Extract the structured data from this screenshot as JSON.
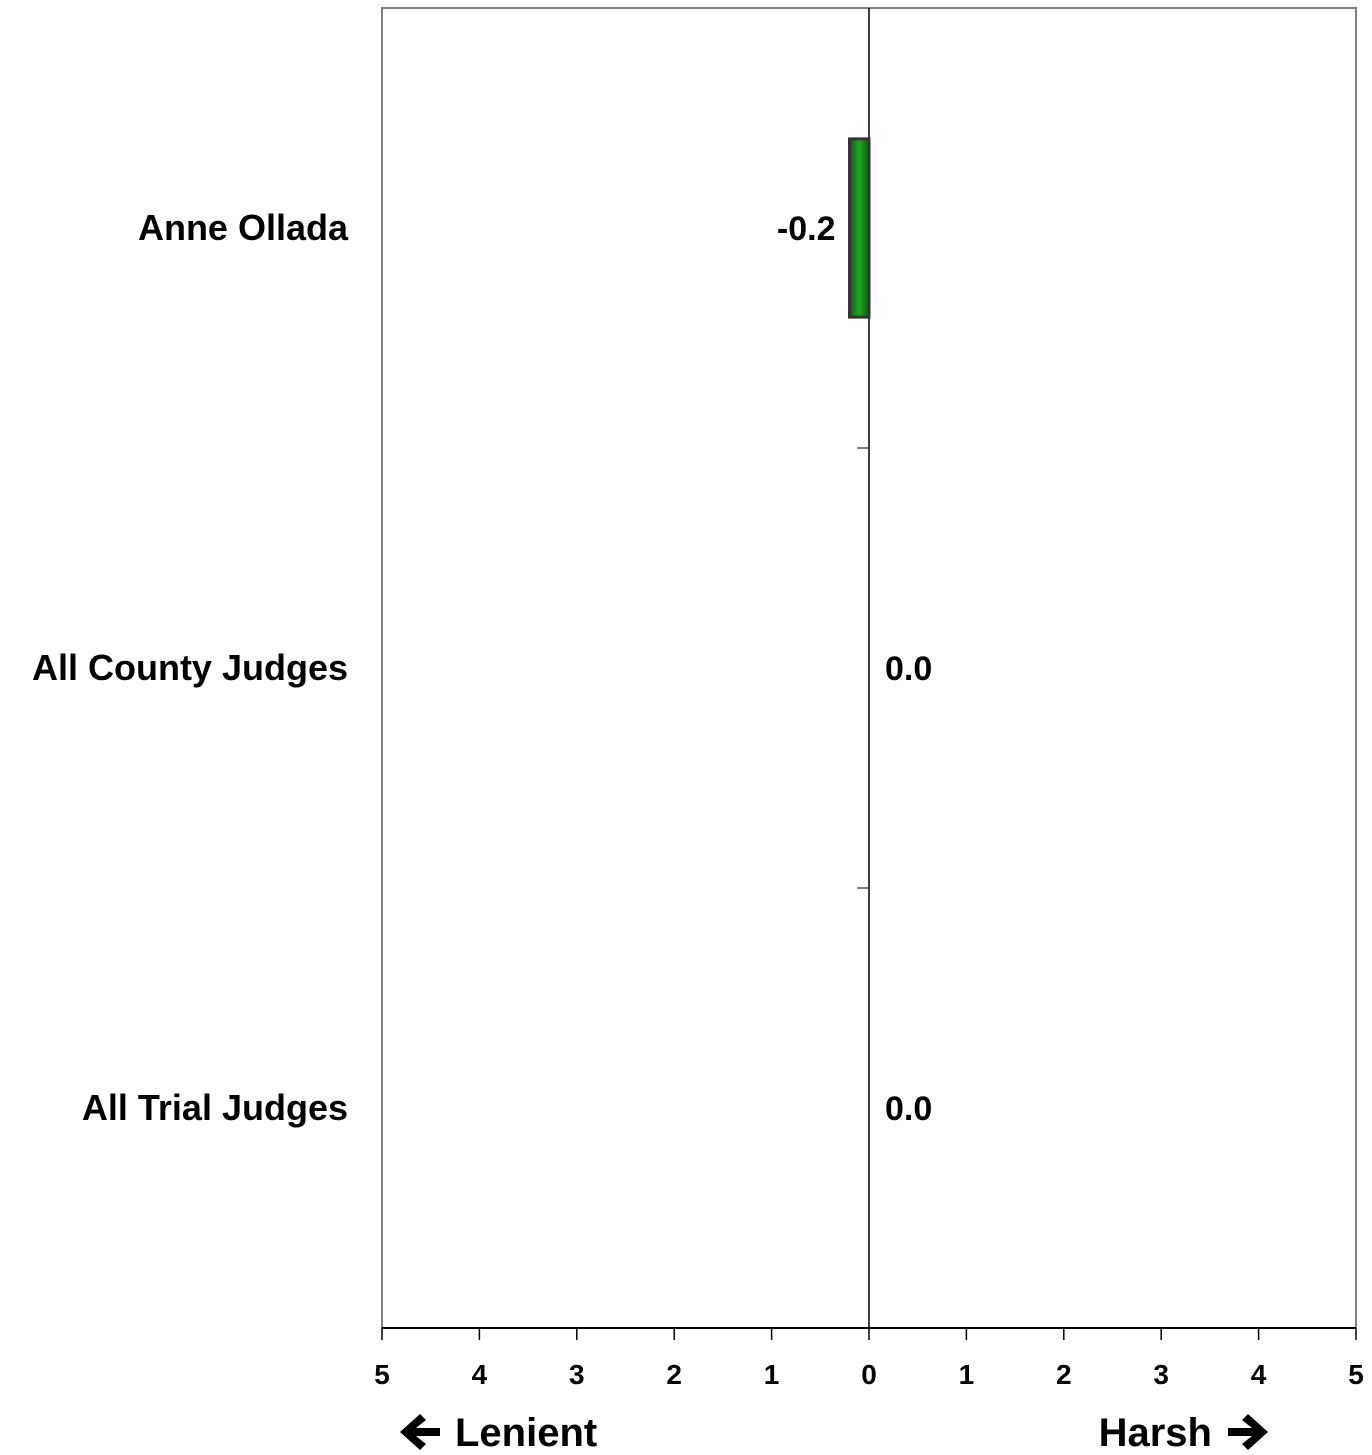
{
  "chart_data": {
    "type": "bar",
    "orientation": "horizontal",
    "categories": [
      "Anne Ollada",
      "All County Judges",
      "All Trial Judges"
    ],
    "values": [
      -0.2,
      0.0,
      0.0
    ],
    "value_labels": [
      "-0.2",
      "0.0",
      "0.0"
    ],
    "xlim": [
      -5,
      5
    ],
    "x_ticks": [
      -5,
      -4,
      -3,
      -2,
      -1,
      0,
      1,
      2,
      3,
      4,
      5
    ],
    "x_tick_labels": [
      "5",
      "4",
      "3",
      "2",
      "1",
      "0",
      "1",
      "2",
      "3",
      "4",
      "5"
    ],
    "direction_labels": {
      "left": "Lenient",
      "right": "Harsh"
    },
    "bar_color": "#1a8c1a",
    "bar_edge_color": "#333333",
    "grid": false,
    "legend": "none"
  }
}
